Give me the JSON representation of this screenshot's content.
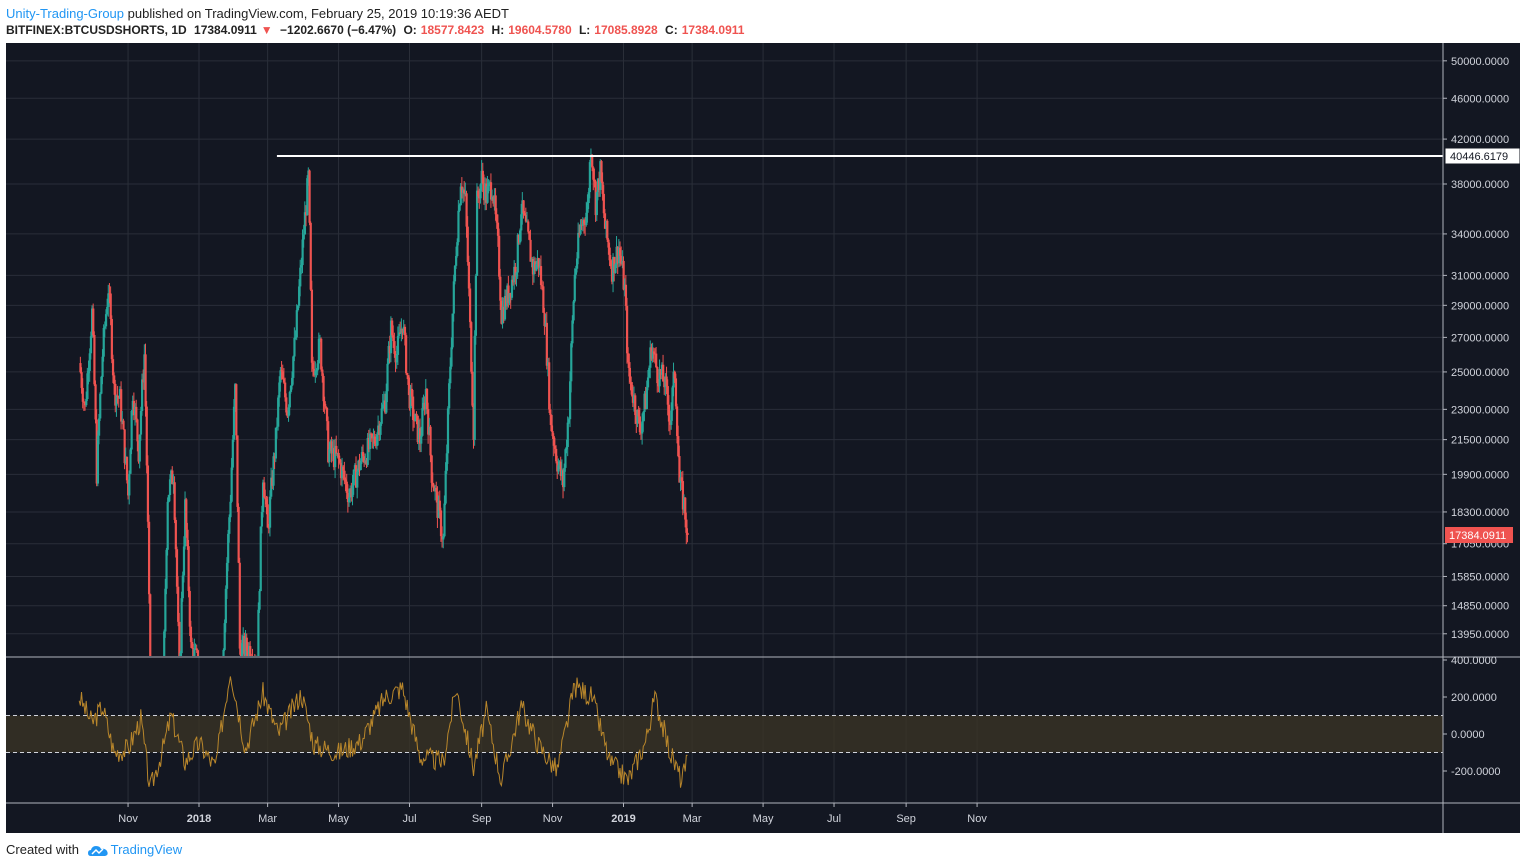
{
  "header": {
    "author": "Unity-Trading-Group",
    "published": "published on TradingView.com, February 25, 2019 10:19:36 AEDT",
    "symbol": "BITFINEX:BTCUSDSHORTS, 1D",
    "last": "17384.0911",
    "change": "−1202.6670 (−6.47%)",
    "open_label": "O:",
    "open": "18577.8423",
    "high_label": "H:",
    "high": "19604.5780",
    "low_label": "L:",
    "low": "17085.8928",
    "close_label": "C:",
    "close": "17384.0911"
  },
  "footer": {
    "created_with": "Created with",
    "brand": "TradingView"
  },
  "colors": {
    "up": "#26a69a",
    "down": "#ef5350",
    "background": "#131722",
    "grid": "#2a2e39",
    "oscillator": "#b8862b",
    "level_line": "#ffffff"
  },
  "chart_data": {
    "type": "candlestick",
    "symbol": "BITFINEX:BTCUSDSHORTS",
    "interval": "1D",
    "price_axis_ticks": [
      "50000.0000",
      "46000.0000",
      "42000.0000",
      "38000.0000",
      "34000.0000",
      "31000.0000",
      "29000.0000",
      "27000.0000",
      "25000.0000",
      "23000.0000",
      "21500.0000",
      "19900.0000",
      "18300.0000",
      "17050.0000",
      "15850.0000",
      "14850.0000",
      "13950.0000"
    ],
    "price_axis_values": [
      50000,
      46000,
      42000,
      38000,
      34000,
      31000,
      29000,
      27000,
      25000,
      23000,
      21500,
      19900,
      18300,
      17050,
      15850,
      14850,
      13950
    ],
    "price_scale": "log",
    "last_price_label": "17384.0911",
    "horizontal_level": {
      "value": 40446.6179,
      "label": "40446.6179"
    },
    "x_axis_ticks": [
      "Nov",
      "2018",
      "Mar",
      "May",
      "Jul",
      "Sep",
      "Nov",
      "2019",
      "Mar",
      "May",
      "Jul",
      "Sep",
      "Nov"
    ],
    "keypoints": [
      {
        "date": "2017-09-20",
        "close": 25500
      },
      {
        "date": "2017-09-25",
        "close": 23000
      },
      {
        "date": "2017-10-01",
        "close": 28500
      },
      {
        "date": "2017-10-05",
        "close": 20000
      },
      {
        "date": "2017-10-10",
        "close": 26000
      },
      {
        "date": "2017-10-15",
        "close": 30200
      },
      {
        "date": "2017-10-20",
        "close": 24000
      },
      {
        "date": "2017-10-25",
        "close": 23500
      },
      {
        "date": "2017-11-01",
        "close": 19000
      },
      {
        "date": "2017-11-05",
        "close": 24000
      },
      {
        "date": "2017-11-10",
        "close": 21000
      },
      {
        "date": "2017-11-15",
        "close": 26000
      },
      {
        "date": "2017-11-20",
        "close": 12000
      },
      {
        "date": "2017-12-01",
        "close": 12000
      },
      {
        "date": "2017-12-05",
        "close": 19000
      },
      {
        "date": "2017-12-10",
        "close": 20000
      },
      {
        "date": "2017-12-15",
        "close": 12500
      },
      {
        "date": "2017-12-20",
        "close": 18500
      },
      {
        "date": "2017-12-25",
        "close": 13500
      },
      {
        "date": "2018-01-01",
        "close": 13000
      },
      {
        "date": "2018-01-10",
        "close": 12500
      },
      {
        "date": "2018-01-20",
        "close": 12000
      },
      {
        "date": "2018-01-28",
        "close": 19000
      },
      {
        "date": "2018-02-01",
        "close": 24000
      },
      {
        "date": "2018-02-05",
        "close": 13500
      },
      {
        "date": "2018-02-15",
        "close": 13500
      },
      {
        "date": "2018-02-20",
        "close": 13000
      },
      {
        "date": "2018-02-25",
        "close": 20000
      },
      {
        "date": "2018-03-01",
        "close": 17500
      },
      {
        "date": "2018-03-08",
        "close": 21500
      },
      {
        "date": "2018-03-12",
        "close": 25000
      },
      {
        "date": "2018-03-18",
        "close": 23000
      },
      {
        "date": "2018-03-25",
        "close": 27000
      },
      {
        "date": "2018-03-30",
        "close": 32000
      },
      {
        "date": "2018-04-05",
        "close": 38500
      },
      {
        "date": "2018-04-08",
        "close": 25000
      },
      {
        "date": "2018-04-15",
        "close": 26500
      },
      {
        "date": "2018-04-22",
        "close": 21000
      },
      {
        "date": "2018-05-01",
        "close": 20500
      },
      {
        "date": "2018-05-10",
        "close": 19000
      },
      {
        "date": "2018-05-20",
        "close": 20500
      },
      {
        "date": "2018-06-01",
        "close": 21500
      },
      {
        "date": "2018-06-10",
        "close": 23500
      },
      {
        "date": "2018-06-15",
        "close": 27500
      },
      {
        "date": "2018-06-20",
        "close": 26000
      },
      {
        "date": "2018-06-25",
        "close": 28000
      },
      {
        "date": "2018-06-30",
        "close": 24000
      },
      {
        "date": "2018-07-05",
        "close": 22500
      },
      {
        "date": "2018-07-10",
        "close": 21500
      },
      {
        "date": "2018-07-15",
        "close": 24000
      },
      {
        "date": "2018-07-20",
        "close": 20000
      },
      {
        "date": "2018-07-25",
        "close": 18500
      },
      {
        "date": "2018-07-30",
        "close": 17200
      },
      {
        "date": "2018-08-02",
        "close": 21000
      },
      {
        "date": "2018-08-06",
        "close": 27000
      },
      {
        "date": "2018-08-10",
        "close": 33000
      },
      {
        "date": "2018-08-14",
        "close": 38500
      },
      {
        "date": "2018-08-18",
        "close": 36500
      },
      {
        "date": "2018-08-22",
        "close": 27500
      },
      {
        "date": "2018-08-25",
        "close": 22000
      },
      {
        "date": "2018-08-28",
        "close": 36500
      },
      {
        "date": "2018-09-01",
        "close": 38500
      },
      {
        "date": "2018-09-05",
        "close": 37000
      },
      {
        "date": "2018-09-10",
        "close": 38000
      },
      {
        "date": "2018-09-15",
        "close": 33000
      },
      {
        "date": "2018-09-18",
        "close": 28500
      },
      {
        "date": "2018-09-25",
        "close": 30000
      },
      {
        "date": "2018-10-01",
        "close": 32000
      },
      {
        "date": "2018-10-05",
        "close": 36000
      },
      {
        "date": "2018-10-10",
        "close": 34000
      },
      {
        "date": "2018-10-15",
        "close": 31500
      },
      {
        "date": "2018-10-20",
        "close": 32000
      },
      {
        "date": "2018-10-25",
        "close": 28500
      },
      {
        "date": "2018-10-30",
        "close": 22500
      },
      {
        "date": "2018-11-05",
        "close": 20500
      },
      {
        "date": "2018-11-10",
        "close": 19500
      },
      {
        "date": "2018-11-15",
        "close": 23000
      },
      {
        "date": "2018-11-20",
        "close": 31000
      },
      {
        "date": "2018-11-25",
        "close": 34500
      },
      {
        "date": "2018-12-01",
        "close": 36000
      },
      {
        "date": "2018-12-04",
        "close": 41500
      },
      {
        "date": "2018-12-08",
        "close": 36500
      },
      {
        "date": "2018-12-12",
        "close": 39000
      },
      {
        "date": "2018-12-16",
        "close": 34500
      },
      {
        "date": "2018-12-22",
        "close": 31500
      },
      {
        "date": "2018-12-28",
        "close": 33000
      },
      {
        "date": "2019-01-02",
        "close": 30000
      },
      {
        "date": "2019-01-05",
        "close": 25000
      },
      {
        "date": "2019-01-10",
        "close": 23500
      },
      {
        "date": "2019-01-15",
        "close": 22000
      },
      {
        "date": "2019-01-20",
        "close": 23500
      },
      {
        "date": "2019-01-25",
        "close": 26500
      },
      {
        "date": "2019-01-30",
        "close": 25000
      },
      {
        "date": "2019-02-05",
        "close": 24500
      },
      {
        "date": "2019-02-10",
        "close": 22500
      },
      {
        "date": "2019-02-14",
        "close": 25000
      },
      {
        "date": "2019-02-18",
        "close": 19500
      },
      {
        "date": "2019-02-22",
        "close": 18600
      },
      {
        "date": "2019-02-25",
        "close": 17384.0911
      }
    ],
    "oscillator": {
      "axis_ticks": [
        "400.0000",
        "200.0000",
        "0.0000",
        "-200.0000"
      ],
      "axis_values": [
        400,
        200,
        0,
        -200
      ],
      "upper_band": 100,
      "lower_band": -100,
      "keypoints": [
        {
          "date": "2017-09-20",
          "value": 200
        },
        {
          "date": "2017-10-01",
          "value": 60
        },
        {
          "date": "2017-10-10",
          "value": 150
        },
        {
          "date": "2017-10-20",
          "value": -100
        },
        {
          "date": "2017-11-01",
          "value": -80
        },
        {
          "date": "2017-11-12",
          "value": 80
        },
        {
          "date": "2017-11-20",
          "value": -300
        },
        {
          "date": "2017-12-01",
          "value": -80
        },
        {
          "date": "2017-12-08",
          "value": 100
        },
        {
          "date": "2017-12-20",
          "value": -150
        },
        {
          "date": "2018-01-01",
          "value": -50
        },
        {
          "date": "2018-01-15",
          "value": -180
        },
        {
          "date": "2018-01-28",
          "value": 350
        },
        {
          "date": "2018-02-10",
          "value": -80
        },
        {
          "date": "2018-02-25",
          "value": 220
        },
        {
          "date": "2018-03-10",
          "value": 0
        },
        {
          "date": "2018-03-30",
          "value": 220
        },
        {
          "date": "2018-04-10",
          "value": -60
        },
        {
          "date": "2018-05-01",
          "value": -100
        },
        {
          "date": "2018-05-20",
          "value": -40
        },
        {
          "date": "2018-06-10",
          "value": 200
        },
        {
          "date": "2018-06-25",
          "value": 250
        },
        {
          "date": "2018-07-10",
          "value": -120
        },
        {
          "date": "2018-07-30",
          "value": -150
        },
        {
          "date": "2018-08-10",
          "value": 250
        },
        {
          "date": "2018-08-25",
          "value": -180
        },
        {
          "date": "2018-09-05",
          "value": 120
        },
        {
          "date": "2018-09-18",
          "value": -250
        },
        {
          "date": "2018-10-05",
          "value": 150
        },
        {
          "date": "2018-10-20",
          "value": -60
        },
        {
          "date": "2018-11-05",
          "value": -200
        },
        {
          "date": "2018-11-20",
          "value": 260
        },
        {
          "date": "2018-12-05",
          "value": 200
        },
        {
          "date": "2018-12-20",
          "value": -150
        },
        {
          "date": "2019-01-05",
          "value": -250
        },
        {
          "date": "2019-01-20",
          "value": -40
        },
        {
          "date": "2019-01-28",
          "value": 200
        },
        {
          "date": "2019-02-10",
          "value": -100
        },
        {
          "date": "2019-02-20",
          "value": -250
        },
        {
          "date": "2019-02-25",
          "value": -150
        }
      ]
    }
  }
}
